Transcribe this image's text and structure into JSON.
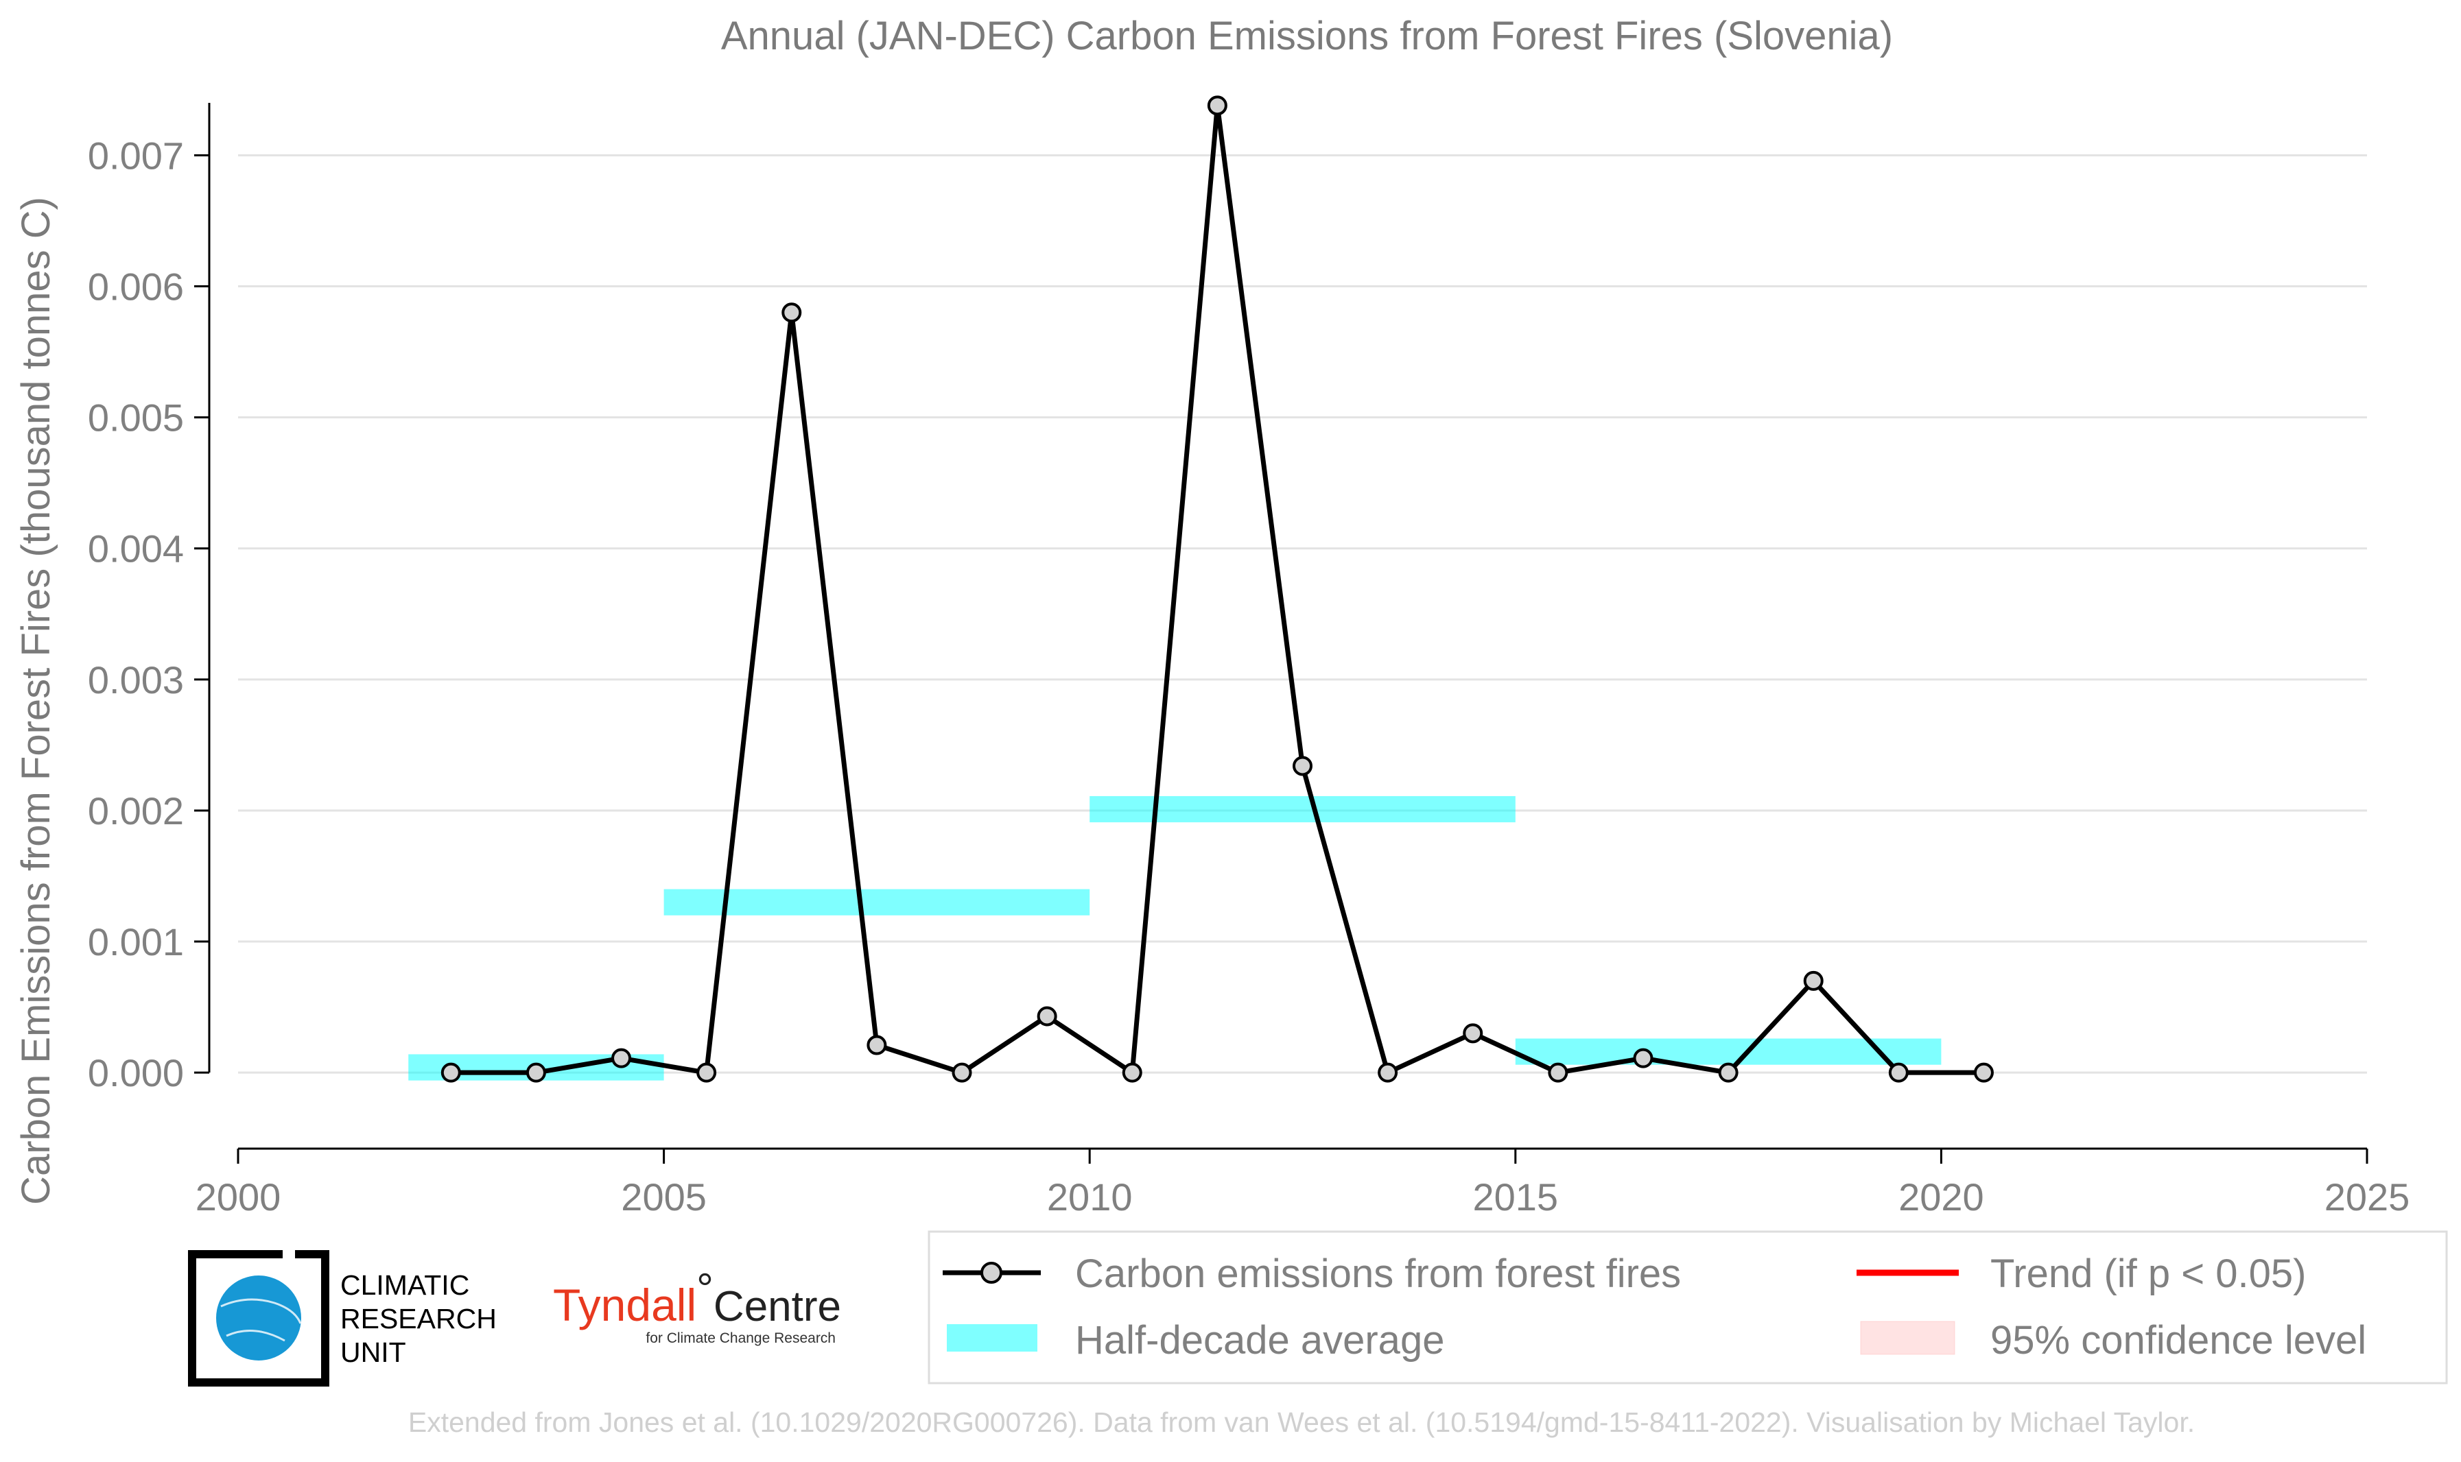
{
  "chart_data": {
    "type": "line",
    "title": "Annual (JAN-DEC) Carbon Emissions from Forest Fires (Slovenia)",
    "ylabel": "Carbon Emissions from Forest Fires (thousand tonnes C)",
    "xlabel": "",
    "xlim": [
      2000,
      2025
    ],
    "ylim": [
      -0.00058,
      0.0074
    ],
    "x_ticks": [
      2000,
      2005,
      2010,
      2015,
      2020,
      2025
    ],
    "x_tick_labels": [
      "2000",
      "2005",
      "2010",
      "2015",
      "2020",
      "2025"
    ],
    "y_ticks": [
      0.0,
      0.001,
      0.002,
      0.003,
      0.004,
      0.005,
      0.006,
      0.007
    ],
    "y_tick_labels": [
      "0.000",
      "0.001",
      "0.002",
      "0.003",
      "0.004",
      "0.005",
      "0.006",
      "0.007"
    ],
    "grid": "horizontal",
    "legend_placement": "bottom-right",
    "series": [
      {
        "name": "Carbon emissions from forest fires",
        "color": "#000000",
        "marker_fill": "#d3d3d3",
        "x": [
          2002.5,
          2003.5,
          2004.5,
          2005.5,
          2006.5,
          2007.5,
          2008.5,
          2009.5,
          2010.5,
          2011.5,
          2012.5,
          2013.5,
          2014.5,
          2015.5,
          2016.5,
          2017.5,
          2018.5,
          2019.5,
          2020.5
        ],
        "values": [
          0.0,
          0.0,
          0.00011,
          0.0,
          0.0058,
          0.00021,
          0.0,
          0.00043,
          0.0,
          0.00738,
          0.00234,
          0.0,
          0.0003,
          0.0,
          0.00011,
          0.0,
          0.0007,
          0.0,
          0.0
        ]
      }
    ],
    "half_decade_averages": {
      "name": "Half-decade average",
      "color": "#00ffff",
      "segments": [
        {
          "x_start": 2002,
          "x_end": 2005,
          "value": 4e-05
        },
        {
          "x_start": 2005,
          "x_end": 2010,
          "value": 0.0013
        },
        {
          "x_start": 2010,
          "x_end": 2015,
          "value": 0.00201
        },
        {
          "x_start": 2015,
          "x_end": 2020,
          "value": 0.00016
        }
      ]
    },
    "legend": [
      {
        "label": "Carbon emissions from forest fires",
        "kind": "line-marker",
        "color": "#000000"
      },
      {
        "label": "Trend (if p < 0.05)",
        "kind": "line",
        "color": "#ff0000"
      },
      {
        "label": "Half-decade average",
        "kind": "band",
        "color": "#00ffff"
      },
      {
        "label": "95% confidence level",
        "kind": "patch",
        "color": "#ffcccc"
      }
    ]
  },
  "logos": {
    "cru": {
      "line1": "CLIMATIC",
      "line2": "RESEARCH",
      "line3": "UNIT"
    },
    "tyndall": {
      "main": "Tyndall",
      "degree": "°",
      "centre": "Centre",
      "sub": "for Climate Change Research"
    }
  },
  "footer": "Extended from Jones et al. (10.1029/2020RG000726). Data from van Wees et al. (10.5194/gmd-15-8411-2022). Visualisation by Michael Taylor."
}
